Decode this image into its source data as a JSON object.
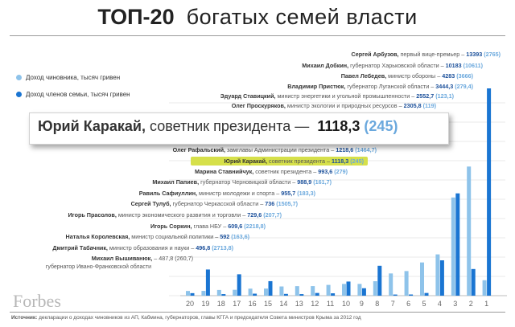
{
  "title": {
    "bold": "ТОП-20",
    "rest": "богатых семей  власти"
  },
  "legend": [
    {
      "label": "Доход чиновника, тысяч гривен",
      "color": "#8ec3ea"
    },
    {
      "label": "Доход  членов семьи, тысяч гривен",
      "color": "#1a75d2"
    }
  ],
  "colors": {
    "official": "#8ec3ea",
    "family": "#1a75d2",
    "highlight": "#d6e04a",
    "value": "#1a1a1a"
  },
  "popup": {
    "name": "Юрий Каракай,",
    "role": "советник президента —",
    "value1": "1118,3",
    "value2": "(245)"
  },
  "brand": "Forbes",
  "source": {
    "label": "Источник:",
    "text": "декларации о доходах чиновников из АП, Кабмина, губернаторов, главы КГГА и председателя Совета министров Крыма за 2012 год"
  },
  "chart_data": {
    "type": "bar",
    "ylabel": "",
    "categories": [
      "20",
      "19",
      "18",
      "17",
      "16",
      "15",
      "14",
      "13",
      "12",
      "11",
      "10",
      "9",
      "8",
      "7",
      "6",
      "5",
      "4",
      "3",
      "2",
      "1"
    ],
    "series": [
      {
        "name": "Доход чиновника, тысяч гривен",
        "values": [
          487.8,
          496.8,
          592,
          609.6,
          729.6,
          736,
          955.7,
          988.9,
          993.6,
          1118.3,
          1218.6,
          1219.1,
          1500,
          2305.8,
          2552.7,
          3444.3,
          4283,
          10183,
          13393,
          1600
        ]
      },
      {
        "name": "Доход  членов семьи, тысяч гривен",
        "values": [
          260.7,
          2713.8,
          163.6,
          2218.8,
          207.7,
          1505.7,
          183.3,
          161.7,
          279,
          245,
          1464.7,
          771.8,
          3100,
          119,
          123.1,
          279.4,
          3666,
          10611,
          2765,
          21500
        ]
      }
    ],
    "rows": [
      {
        "name": "Сергей Арбузов,",
        "role": "первый вице-премьер –",
        "v1": "13393",
        "v2": "(2765)"
      },
      {
        "name": "Михаил Добкин,",
        "role": "губернатор Харьковской области –",
        "v1": "10183",
        "v2": "(10611)"
      },
      {
        "name": "Павел Лебедев,",
        "role": "министр обороны –",
        "v1": "4283",
        "v2": "(3666)"
      },
      {
        "name": "Владимир Пристюк,",
        "role": "губернатор Луганской области –",
        "v1": "3444,3",
        "v2": "(279,4)"
      },
      {
        "name": "Эдуард Ставицкий,",
        "role": "министр энергетики и угольной промышленности –",
        "v1": "2552,7",
        "v2": "(123,1)"
      },
      {
        "name": "Олег Проскуряков,",
        "role": "министр экологии и природных ресурсов –",
        "v1": "2305,8",
        "v2": "(119)"
      },
      {
        "name": "Сергей Ларин,",
        "role": "замглавы Администрации президента –",
        "v1": "1219,1",
        "v2": "(771,8)"
      },
      {
        "name": "Олег Рафальский,",
        "role": "замглавы Администрации президента –",
        "v1": "1218,6",
        "v2": "(1464,7)"
      },
      {
        "name": "Юрий Каракай,",
        "role": "советник президента –",
        "v1": "1118,3",
        "v2": "(245)"
      },
      {
        "name": "Марина Ставнийчук,",
        "role": "советник президента –",
        "v1": "993,6",
        "v2": "(279)"
      },
      {
        "name": "Михаил Папиев,",
        "role": "губернатор Черновицкой области –",
        "v1": "988,9",
        "v2": "(161,7)"
      },
      {
        "name": "Равиль Сафиуллин,",
        "role": "министр молодежи и спорта –",
        "v1": "955,7",
        "v2": "(183,3)"
      },
      {
        "name": "Сергей Тулуб,",
        "role": "губернатор Черкасской области –",
        "v1": "736",
        "v2": "(1505,7)"
      },
      {
        "name": "Игорь Прасолов,",
        "role": "министр экономического развития и торговли –",
        "v1": "729,6",
        "v2": "(207,7)"
      },
      {
        "name": "Игорь Соркин,",
        "role": "глава НБУ –",
        "v1": "609,6",
        "v2": "(2218,8)"
      },
      {
        "name": "Наталья Королевская,",
        "role": "министр социальной политики –",
        "v1": "592",
        "v2": "(163,6)"
      },
      {
        "name": "Дмитрий Табачник,",
        "role": "министр образования и науки –",
        "v1": "496,8",
        "v2": "(2713,8)"
      },
      {
        "name": "Михаил Вышиванюк,",
        "role": "– 487,8 (260,7)",
        "v1": "",
        "v2": "",
        "extra": "губернатор Ивано-Франковской области"
      }
    ]
  }
}
